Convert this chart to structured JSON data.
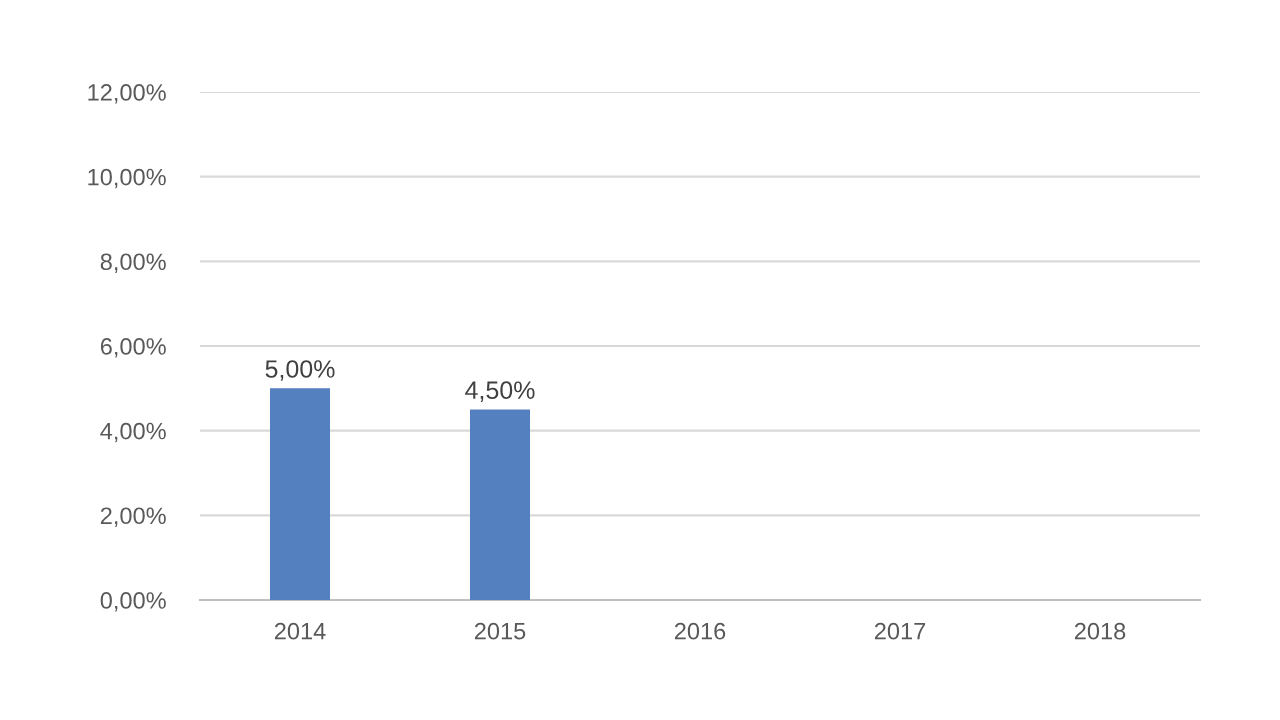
{
  "chart_data": {
    "type": "bar",
    "categories": [
      "2014",
      "2015",
      "2016",
      "2017",
      "2018"
    ],
    "values": [
      5.0,
      4.5,
      null,
      null,
      null
    ],
    "color": "#5580c0",
    "value_labels": [
      "5,00%",
      "4,50%",
      null,
      null,
      null
    ],
    "ylim": [
      0,
      12
    ],
    "yticks": [
      {
        "value": 0,
        "label": "0,00%"
      },
      {
        "value": 2,
        "label": "2,00%"
      },
      {
        "value": 4,
        "label": "4,00%"
      },
      {
        "value": 6,
        "label": "6,00%"
      },
      {
        "value": 8,
        "label": "8,00%"
      },
      {
        "value": 10,
        "label": "10,00%"
      },
      {
        "value": 12,
        "label": "12,00%"
      }
    ],
    "grid": "y"
  }
}
